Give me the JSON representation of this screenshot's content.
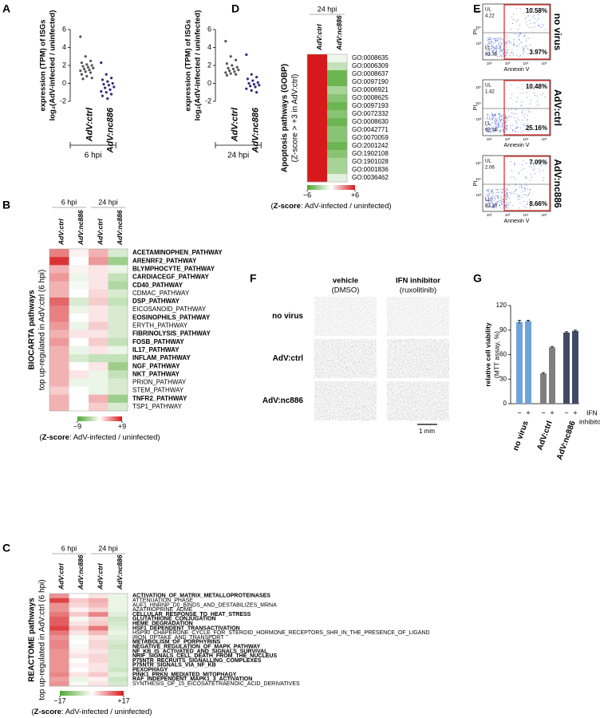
{
  "chart_data": [
    {
      "type": "strip",
      "panel": "A",
      "y_label": [
        "expression (TPM) of ISGs",
        "log₂(AdV-infected / uninfected)"
      ],
      "group": "6 hpi",
      "categories": [
        "AdV:ctrl",
        "AdV:nc886"
      ],
      "colors": [
        "#555555",
        "#2e2a7f"
      ],
      "values": [
        [
          5.2,
          3.0,
          2.5,
          2.3,
          2.1,
          2.0,
          1.9,
          1.8,
          1.7,
          1.6,
          1.5,
          1.4,
          1.3,
          1.2,
          1.0,
          0.8,
          0.6,
          0.5
        ],
        [
          2.3,
          1.0,
          0.6,
          0.4,
          0.2,
          0.0,
          -0.1,
          -0.2,
          -0.4,
          -0.5,
          -0.7,
          -0.9,
          -1.0,
          -1.2,
          -1.4,
          -1.7
        ]
      ],
      "ylim": [
        -2,
        6
      ],
      "yticks": [
        -2,
        0,
        2,
        4,
        6
      ]
    },
    {
      "type": "strip",
      "y_label": [
        "expression (TPM) of ISGs",
        "log₂(AdV-infected / uninfected)"
      ],
      "group": "24 hpi",
      "categories": [
        "AdV:ctrl",
        "AdV:nc886"
      ],
      "colors": [
        "#555555",
        "#2e2a7f"
      ],
      "values": [
        [
          4.7,
          3.0,
          2.6,
          2.2,
          2.0,
          1.8,
          1.7,
          1.6,
          1.5,
          1.4,
          1.3,
          1.2,
          1.1,
          1.0,
          0.9
        ],
        [
          3.2,
          1.0,
          0.7,
          0.5,
          0.3,
          0.1,
          0.0,
          -0.1,
          -0.2,
          -0.3,
          -0.4,
          -0.6,
          -0.8,
          -1.0
        ]
      ],
      "ylim": [
        -2,
        6
      ],
      "yticks": [
        -2,
        0,
        2,
        4,
        6
      ]
    },
    {
      "type": "heatmap",
      "panel": "B",
      "y_label": [
        "BIOCARTA pathways",
        "top up-regulated in AdV:ctrl (6 hpi)"
      ],
      "column_groups": [
        "6 hpi",
        "24 hpi"
      ],
      "columns": [
        "AdV:ctrl",
        "AdV:nc886",
        "AdV:ctrl",
        "AdV:nc886"
      ],
      "column_colors": [
        "#555555",
        "#2e2a7f",
        "#555555",
        "#2e2a7f"
      ],
      "rows": [
        "ACETAMINOPHEN_PATHWAY",
        "ARENRF2_PATHWAY",
        "BLYMPHOCYTE_PATHWAY",
        "CARDIACEGF_PATHWAY",
        "CD40_PATHWAY",
        "CDMAC_PATHWAY",
        "DSP_PATHWAY",
        "EICOSANOID_PATHWAY",
        "EOSINOPHILS_PATHWAY",
        "ERYTH_PATHWAY",
        "FIBRINOLYSIS_PATHWAY",
        "FOSB_PATHWAY",
        "IL17_PATHWAY",
        "INFLAM_PATHWAY",
        "NGF_PATHWAY",
        "NKT_PATHWAY",
        "PRION_PATHWAY",
        "STEM_PATHWAY",
        "TNFR2_PATHWAY",
        "TSP1_PATHWAY"
      ],
      "row_colors": [
        "#c1272d",
        "#c1272d",
        "#2e3192",
        "#c1272d",
        "#2e3192",
        "#000000",
        "#c1272d",
        "#000000",
        "#2e3192",
        "#000000",
        "#c1272d",
        "#c1272d",
        "#2e3192",
        "#c1272d",
        "#2e3192",
        "#2e3192",
        "#000000",
        "#000000",
        "#2e3192",
        "#000000"
      ],
      "values": [
        [
          5,
          0.5,
          3,
          -2
        ],
        [
          8,
          0,
          4,
          -5
        ],
        [
          3,
          0.5,
          1,
          -1
        ],
        [
          4,
          -1,
          1,
          -3
        ],
        [
          3,
          -0.5,
          1,
          -4
        ],
        [
          3,
          0,
          1.5,
          -2
        ],
        [
          6,
          -2,
          2,
          -3
        ],
        [
          5,
          -1,
          1,
          -2
        ],
        [
          5,
          0,
          1,
          -2
        ],
        [
          4,
          -1,
          2,
          -2
        ],
        [
          3,
          1,
          1,
          -2
        ],
        [
          4,
          0,
          2,
          -3
        ],
        [
          3,
          -1,
          1,
          -1
        ],
        [
          3,
          -2,
          -3,
          -3
        ],
        [
          3,
          0,
          1,
          -5
        ],
        [
          3,
          1,
          -1,
          -3
        ],
        [
          3,
          -1,
          -1,
          -2
        ],
        [
          2,
          0,
          -1,
          -2
        ],
        [
          3,
          0,
          3,
          -5
        ],
        [
          3,
          0,
          2,
          -2
        ]
      ],
      "colors": [
        "#4ea72e",
        "#ffffff",
        "#d7191c"
      ],
      "zlim": [
        -9,
        9
      ],
      "zticks": [
        {
          "value": -9,
          "label": "−9"
        },
        {
          "value": 9,
          "label": "+9"
        }
      ],
      "caption": [
        "(",
        "Z-score",
        ": AdV-infected / uninfected)"
      ]
    },
    {
      "type": "heatmap",
      "panel": "C",
      "y_label": [
        "REACTOME pathways",
        "top up-regulated in AdV:ctrl (6 hpi)"
      ],
      "column_groups": [
        "6 hpi",
        "24 hpi"
      ],
      "columns": [
        "AdV:ctrl",
        "AdV:nc886",
        "AdV:ctrl",
        "AdV:nc886"
      ],
      "column_colors": [
        "#555555",
        "#2e2a7f",
        "#555555",
        "#2e2a7f"
      ],
      "rows": [
        "ACTIVATION_OF_MATRIX_METALLOPROTEINASES",
        "ATTENUATION_PHASE",
        "AUF1_HNRNP_D0_BINDS_AND_DESTABILIZES_MRNA",
        "AZATHIOPRINE_ADME",
        "CELLULAR_RESPONSE_TO_HEAT_STRESS",
        "GLUTATHIONE_CONJUGATION",
        "HEME_DEGRADATION",
        "HSF1_DEPENDENT_TRANSACTIVATION",
        "HSP90_CHAPERONE_CYCLE_FOR_STEROID_HORMONE_RECEPTORS_SHR_IN_THE_PRESENCE_OF_LIGAND",
        "IRON_UPTAKE_AND_TRANSPORT",
        "METABOLISM_OF_PORPHYRINS",
        "NEGATIVE_REGULATION_OF_MAPK_PATHWAY",
        "NF_KB_IS_ACTIVATED_AND_SIGNALS_SURVIVAL",
        "NRIF_SIGNALS_CELL_DEATH_FROM_THE_NUCLEUS",
        "P75NTR_RECRUITS_SIGNALLING_COMPLEXES",
        "P75NTR_SIGNALS_VIA_NF_KB",
        "PEXOPHAGY",
        "PINK1_PRKN_MEDIATED_MITOPHAGY",
        "RAF_INDEPENDENT_MAPK1_3_ACTIVATION",
        "SYNTHESIS_OF_15_EICOSATETRAENOIC_ACID_DERIVATIVES"
      ],
      "row_colors": [
        "#c1272d",
        "#000000",
        "#000000",
        "#000000",
        "#c1272d",
        "#c1272d",
        "#c1272d",
        "#c1272d",
        "#000000",
        "#000000",
        "#c1272d",
        "#c1272d",
        "#2e3192",
        "#2e3192",
        "#2e3192",
        "#2e3192",
        "#c1272d",
        "#c1272d",
        "#c1272d",
        "#000000"
      ],
      "values": [
        [
          8,
          0,
          2,
          -2
        ],
        [
          14,
          4,
          6,
          -2
        ],
        [
          8,
          3,
          5,
          -2
        ],
        [
          8,
          1,
          3,
          -2
        ],
        [
          10,
          4,
          9,
          -3
        ],
        [
          12,
          -1,
          3,
          -5
        ],
        [
          12,
          2,
          4,
          -4
        ],
        [
          14,
          4,
          10,
          -3
        ],
        [
          10,
          2,
          5,
          -2
        ],
        [
          8,
          -1,
          2,
          -3
        ],
        [
          9,
          0,
          3,
          -4
        ],
        [
          9,
          -1,
          3,
          -5
        ],
        [
          8,
          1,
          2,
          -4
        ],
        [
          8,
          2,
          3,
          -4
        ],
        [
          8,
          0,
          3,
          -4
        ],
        [
          8,
          1,
          2,
          -4
        ],
        [
          8,
          0,
          2,
          -5
        ],
        [
          9,
          2,
          4,
          -3
        ],
        [
          7,
          -2,
          1,
          -5
        ],
        [
          8,
          -1,
          2,
          -4
        ]
      ],
      "colors": [
        "#4ea72e",
        "#ffffff",
        "#d7191c"
      ],
      "zlim": [
        -17,
        17
      ],
      "zticks": [
        {
          "value": -17,
          "label": "−17"
        },
        {
          "value": 17,
          "label": "+17"
        }
      ],
      "caption": [
        "(",
        "Z-score",
        ": AdV-infected / uninfected)"
      ]
    },
    {
      "type": "heatmap",
      "panel": "D",
      "y_label": [
        "Apoptosis pathways (GOBP)",
        "(Z-score > +3 in AdV:ctrl)"
      ],
      "column_groups": [
        "24 hpi"
      ],
      "columns": [
        "AdV:ctrl",
        "AdV:nc886"
      ],
      "column_colors": [
        "#555555",
        "#2e2a7f"
      ],
      "rows": [
        "GO:0008635",
        "GO:0006309",
        "GO:0008637",
        "GO:0097190",
        "GO:0006921",
        "GO:0008625",
        "GO:0097193",
        "GO:0072332",
        "GO:0008630",
        "GO:0042771",
        "GO:0070059",
        "GO:2001242",
        "GO:1902108",
        "GO:1901028",
        "GO:0001836",
        "GO:0036462"
      ],
      "row_colors": [
        "#000000",
        "#000000",
        "#000000",
        "#000000",
        "#000000",
        "#000000",
        "#000000",
        "#000000",
        "#000000",
        "#000000",
        "#000000",
        "#000000",
        "#000000",
        "#000000",
        "#000000",
        "#000000"
      ],
      "values": [
        [
          6,
          -0.5
        ],
        [
          7,
          -2
        ],
        [
          8,
          -5
        ],
        [
          9,
          -5
        ],
        [
          7,
          -3
        ],
        [
          6,
          -4
        ],
        [
          8,
          -5
        ],
        [
          7,
          -4
        ],
        [
          6,
          -5
        ],
        [
          7,
          -4
        ],
        [
          9,
          -4
        ],
        [
          8,
          -5
        ],
        [
          7,
          -4
        ],
        [
          6,
          -3
        ],
        [
          7,
          -3
        ],
        [
          6,
          -1
        ]
      ],
      "colors": [
        "#4ea72e",
        "#ffffff",
        "#d7191c"
      ],
      "zlim": [
        -6,
        6
      ],
      "zticks": [
        {
          "value": -6,
          "label": "−6"
        },
        {
          "value": 6,
          "label": "+6"
        }
      ],
      "caption": [
        "(",
        "Z-score",
        ": AdV-infected / uninfected)"
      ]
    },
    {
      "type": "bar",
      "panel": "G",
      "y_label": [
        "relative cell viability",
        "(MTT assay, %)"
      ],
      "categories": [
        "−",
        "+",
        "−",
        "+",
        "−",
        "+"
      ],
      "x_label": [
        "IFN",
        "inhibitor"
      ],
      "groups": [
        "no virus",
        "AdV:ctrl",
        "AdV:nc886"
      ],
      "group_colors": [
        "#4a86c5",
        "#7f7f7f",
        "#2e2a7f"
      ],
      "values": [
        100,
        101,
        37,
        69,
        87,
        89
      ],
      "errors": [
        2,
        1,
        1,
        1,
        1,
        1
      ],
      "colors": [
        "#6fa3dc",
        "#6fa3dc",
        "#7f7f7f",
        "#7f7f7f",
        "#3f4b66",
        "#3f4b66"
      ],
      "ylim": [
        0,
        120
      ],
      "yticks": [
        0,
        30,
        60,
        90,
        120
      ]
    }
  ],
  "flow_cytometry": {
    "panel": "E",
    "x_label": "Annexin V",
    "y_label": "PI",
    "xticks": [
      "10²",
      "10³",
      "10⁴",
      "10⁵"
    ],
    "yticks": [
      "10³",
      "10⁴",
      "10⁵"
    ],
    "plots": [
      {
        "condition": "no virus",
        "color": "#4a86c5",
        "UL_label": "UL",
        "UL": "4.22",
        "LL_label": "LL",
        "LL": "81.36",
        "upper_right": "10.58%",
        "lower_right": "3.97%"
      },
      {
        "condition": "AdV:ctrl",
        "color": "#7f7f7f",
        "UL_label": "UL",
        "UL": "1.42",
        "LL_label": "LL",
        "LL": "62.34",
        "upper_right": "10.48%",
        "lower_right": "25.16%"
      },
      {
        "condition": "AdV:nc886",
        "color": "#2e2a7f",
        "UL_label": "UL",
        "UL": "2.06",
        "LL_label": "LL",
        "LL": "82.19",
        "upper_right": "7.09%",
        "lower_right": "8.66%"
      }
    ]
  },
  "micrographs": {
    "panel": "F",
    "columns": [
      [
        "vehicle",
        "(DMSO)"
      ],
      [
        "IFN inhibitor",
        "(ruxolitinib)"
      ]
    ],
    "rows": [
      "no virus",
      "AdV:ctrl",
      "AdV:nc886"
    ],
    "row_colors": [
      "#4a86c5",
      "#7f7f7f",
      "#2e2a7f"
    ],
    "scale_bar": "1 mm"
  }
}
